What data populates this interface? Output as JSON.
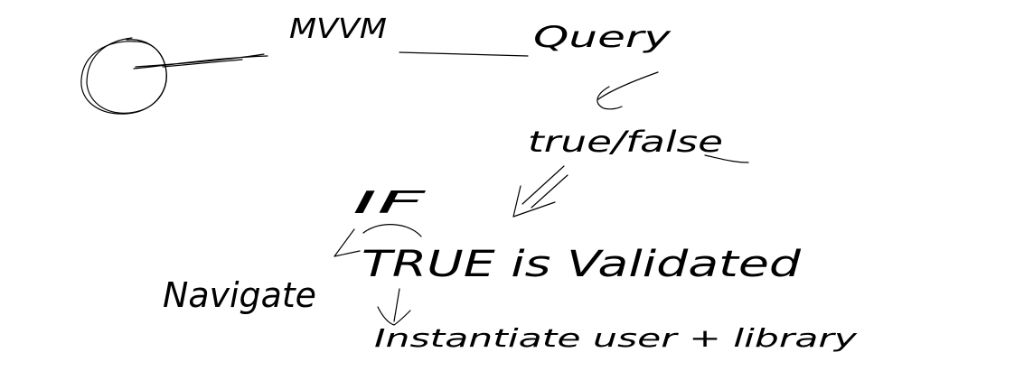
{
  "diagram": {
    "nodes": {
      "actor": "",
      "mvvm": "MVVM",
      "query": "Query",
      "result": "true/false",
      "condition": "IF",
      "branch": "TRUE is Validated",
      "navigate": "Navigate",
      "instantiate": "Instantiate user + library"
    },
    "colors": {
      "ink": "#000000",
      "background": "#ffffff"
    }
  }
}
